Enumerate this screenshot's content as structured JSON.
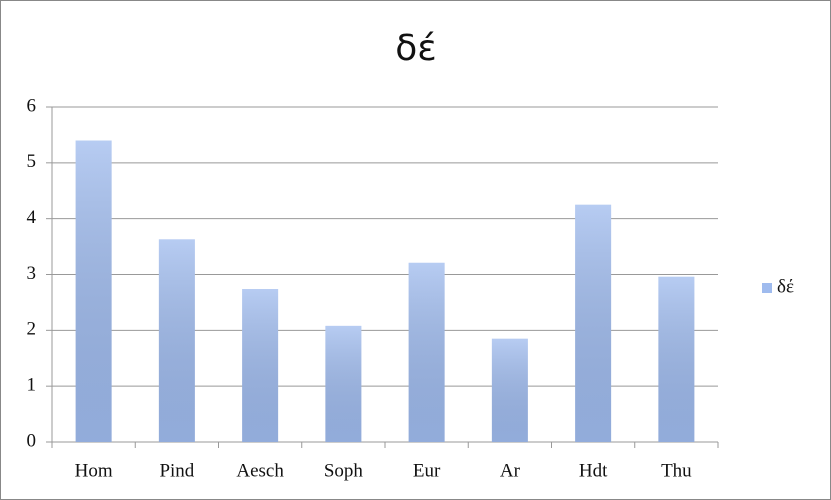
{
  "chart_data": {
    "type": "bar",
    "title": "δέ",
    "categories": [
      "Hom",
      "Pind",
      "Aesch",
      "Soph",
      "Eur",
      "Ar",
      "Hdt",
      "Thu"
    ],
    "series": [
      {
        "name": "δέ",
        "color": "#9fbbee",
        "values": [
          5.4,
          3.63,
          2.74,
          2.08,
          3.21,
          1.85,
          4.25,
          2.96
        ]
      }
    ],
    "ylim": [
      0,
      6
    ],
    "yticks": [
      0,
      1,
      2,
      3,
      4,
      5,
      6
    ],
    "grid": true,
    "legend": "right"
  }
}
